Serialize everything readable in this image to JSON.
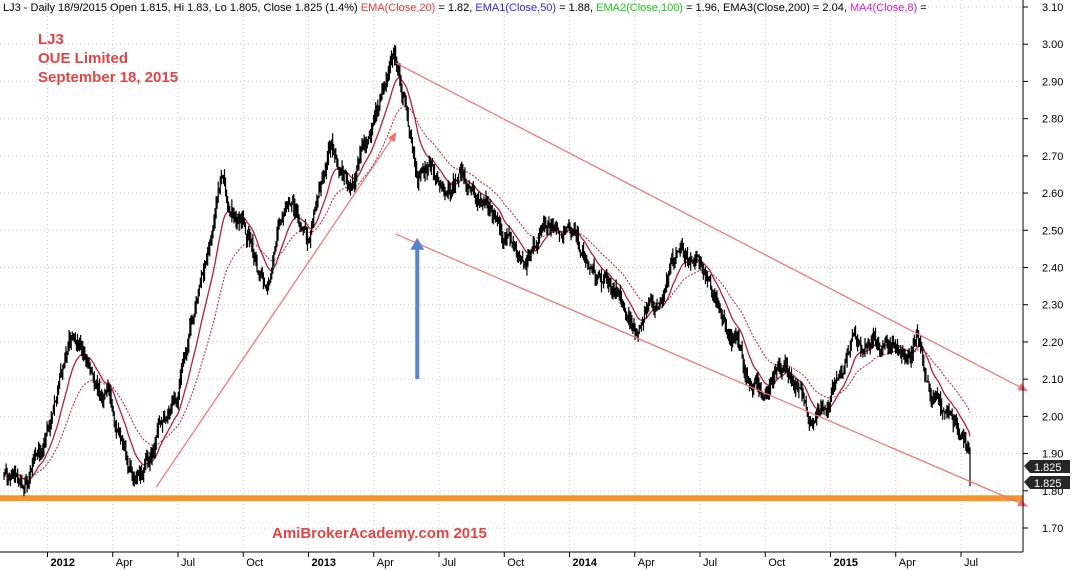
{
  "header": {
    "ticker": "LJ3",
    "summary": " - Daily 18/9/2015 Open 1.815, Hi 1.83, Lo 1.805, Close 1.825 (1.4%) ",
    "ema20_label": "EMA(Close,20)",
    "ema20_value": " = 1.82, ",
    "ema50_label": "EMA1(Close,50)",
    "ema50_value": " = 1.88, ",
    "ema100_label": "EMA2(Close,100)",
    "ema100_value": " = 1.96, ",
    "ema200_label": "EMA3(Close,200)",
    "ema200_value": " = 2.04, ",
    "ma8_label": "MA4(Close,8)",
    "ma8_value": " = "
  },
  "annotation": {
    "line1": "LJ3",
    "line2": "OUE Limited",
    "line3": "September 18, 2015"
  },
  "watermark": "AmiBrokerAcademy.com 2015",
  "price_tags": {
    "last": "1.825",
    "close": "1.825"
  },
  "colors": {
    "price_bars": "#000000",
    "ema20": "#e63a3a",
    "ema50": "#2c2cd6",
    "ema100": "#19c819",
    "ema200": "#000000",
    "ma8": "#cc22cc",
    "ema_lines_on_chart": "#b0203c",
    "trend_lines": "#f07070",
    "support_line": "#f5952e",
    "arrow": "#5a82cf",
    "annotation_text": "#e04545",
    "tag_bg": "#262626",
    "tag_text": "#ffffff"
  },
  "chart_data": {
    "type": "candlestick",
    "title": "",
    "ylabel": "",
    "xlabel": "",
    "ylim": [
      1.66,
      3.1
    ],
    "y_ticks": [
      "3.10",
      "3.00",
      "2.90",
      "2.80",
      "2.70",
      "2.60",
      "2.50",
      "2.40",
      "2.30",
      "2.20",
      "2.10",
      "2.00",
      "1.90",
      "1.80",
      "1.70"
    ],
    "y_tick_values": [
      3.1,
      3.0,
      2.9,
      2.8,
      2.7,
      2.6,
      2.5,
      2.4,
      2.3,
      2.2,
      2.1,
      2.0,
      1.9,
      1.8,
      1.7
    ],
    "x_ticks": [
      {
        "label": "2012",
        "year": true,
        "month": "2012-01"
      },
      {
        "label": "Apr",
        "year": false,
        "month": "2012-04"
      },
      {
        "label": "Jul",
        "year": false,
        "month": "2012-07"
      },
      {
        "label": "Oct",
        "year": false,
        "month": "2012-10"
      },
      {
        "label": "2013",
        "year": true,
        "month": "2013-01"
      },
      {
        "label": "Apr",
        "year": false,
        "month": "2013-04"
      },
      {
        "label": "Jul",
        "year": false,
        "month": "2013-07"
      },
      {
        "label": "Oct",
        "year": false,
        "month": "2013-10"
      },
      {
        "label": "2014",
        "year": true,
        "month": "2014-01"
      },
      {
        "label": "Apr",
        "year": false,
        "month": "2014-04"
      },
      {
        "label": "Jul",
        "year": false,
        "month": "2014-07"
      },
      {
        "label": "Oct",
        "year": false,
        "month": "2014-10"
      },
      {
        "label": "2015",
        "year": true,
        "month": "2015-01"
      },
      {
        "label": "Apr",
        "year": false,
        "month": "2015-04"
      },
      {
        "label": "Jul",
        "year": false,
        "month": "2015-07"
      }
    ],
    "price_path": [
      [
        "2011-11",
        1.86
      ],
      [
        "2011-12",
        1.8
      ],
      [
        "2012-01",
        1.95
      ],
      [
        "2012-02",
        2.22
      ],
      [
        "2012-03",
        2.12
      ],
      [
        "2012-04",
        2.02
      ],
      [
        "2012-05",
        1.82
      ],
      [
        "2012-06",
        1.93
      ],
      [
        "2012-07",
        2.05
      ],
      [
        "2012-08",
        2.35
      ],
      [
        "2012-09",
        2.62
      ],
      [
        "2012-10",
        2.52
      ],
      [
        "2012-11",
        2.36
      ],
      [
        "2012-12",
        2.56
      ],
      [
        "2013-01",
        2.45
      ],
      [
        "2013-02",
        2.72
      ],
      [
        "2013-03",
        2.62
      ],
      [
        "2013-04",
        2.8
      ],
      [
        "2013-05",
        2.95
      ],
      [
        "2013-06",
        2.68
      ],
      [
        "2013-07",
        2.62
      ],
      [
        "2013-08",
        2.66
      ],
      [
        "2013-09",
        2.55
      ],
      [
        "2013-10",
        2.48
      ],
      [
        "2013-11",
        2.4
      ],
      [
        "2013-12",
        2.55
      ],
      [
        "2014-01",
        2.5
      ],
      [
        "2014-02",
        2.38
      ],
      [
        "2014-03",
        2.33
      ],
      [
        "2014-04",
        2.24
      ],
      [
        "2014-05",
        2.3
      ],
      [
        "2014-06",
        2.45
      ],
      [
        "2014-07",
        2.4
      ],
      [
        "2014-08",
        2.28
      ],
      [
        "2014-09",
        2.15
      ],
      [
        "2014-10",
        2.05
      ],
      [
        "2014-11",
        2.12
      ],
      [
        "2014-12",
        2.0
      ],
      [
        "2015-01",
        2.06
      ],
      [
        "2015-02",
        2.22
      ],
      [
        "2015-03",
        2.2
      ],
      [
        "2015-04",
        2.17
      ],
      [
        "2015-05",
        2.2
      ],
      [
        "2015-06",
        2.02
      ],
      [
        "2015-07",
        1.98
      ],
      [
        "2015-08",
        1.76
      ],
      [
        "2015-09",
        1.825
      ]
    ],
    "last_close": 1.825,
    "support_level": 1.78,
    "trend_lines": [
      {
        "name": "uptrend",
        "from": [
          "2012-06",
          1.81
        ],
        "to": [
          "2013-05",
          2.76
        ]
      },
      {
        "name": "channel-upper",
        "from": [
          "2013-05",
          2.95
        ],
        "to": [
          "2015-10",
          2.07
        ]
      },
      {
        "name": "channel-lower",
        "from": [
          "2013-05",
          2.49
        ],
        "to": [
          "2015-10",
          1.76
        ]
      }
    ],
    "arrow": {
      "month": "2013-06",
      "from": 2.1,
      "to": 2.48
    }
  }
}
